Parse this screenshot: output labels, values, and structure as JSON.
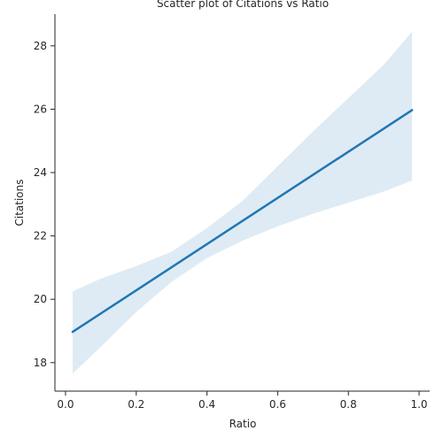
{
  "chart_data": {
    "type": "line",
    "title": "Scatter plot of Citations vs Ratio",
    "xlabel": "Ratio",
    "ylabel": "Citations",
    "xlim": [
      -0.03,
      1.03
    ],
    "ylim": [
      17.1,
      29.0
    ],
    "xticks": [
      0.0,
      0.2,
      0.4,
      0.6,
      0.8,
      1.0
    ],
    "xtick_labels": [
      "0.0",
      "0.2",
      "0.4",
      "0.6",
      "0.8",
      "1.0"
    ],
    "yticks": [
      18,
      20,
      22,
      24,
      26,
      28
    ],
    "ytick_labels": [
      "18",
      "20",
      "22",
      "24",
      "26",
      "28"
    ],
    "grid": false,
    "series": [
      {
        "kind": "regression-line",
        "color": "#1f77b4",
        "x": [
          0.02,
          0.98
        ],
        "y": [
          18.97,
          25.97
        ]
      }
    ],
    "confidence_band": {
      "color": "#1f77b4",
      "opacity": 0.15,
      "x": [
        0.02,
        0.1,
        0.2,
        0.3,
        0.4,
        0.5,
        0.6,
        0.7,
        0.8,
        0.9,
        0.98
      ],
      "upper": [
        20.25,
        20.65,
        21.05,
        21.5,
        22.25,
        23.1,
        24.2,
        25.3,
        26.35,
        27.4,
        28.45
      ],
      "lower": [
        17.65,
        18.5,
        19.6,
        20.55,
        21.3,
        21.85,
        22.3,
        22.7,
        23.05,
        23.4,
        23.75
      ]
    }
  }
}
